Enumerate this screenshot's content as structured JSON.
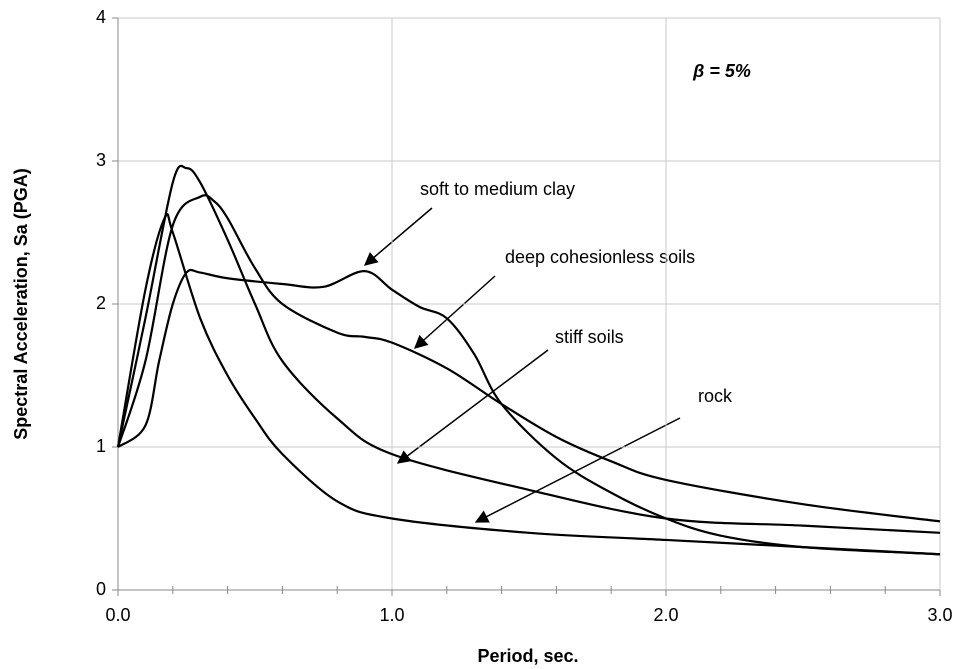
{
  "chart_data": {
    "type": "line",
    "xlabel": "Period, sec.",
    "ylabel": "Spectral Acceleration, Sa (PGA)",
    "annotation": "β = 5%",
    "xlim": [
      0,
      3
    ],
    "ylim": [
      0,
      4
    ],
    "xticks": [
      {
        "value": 0,
        "label": "0.0"
      },
      {
        "value": 1,
        "label": "1.0"
      },
      {
        "value": 2,
        "label": "2.0"
      },
      {
        "value": 3,
        "label": "3.0"
      }
    ],
    "xminorticks": [
      0.2,
      0.4,
      0.6,
      0.8,
      1.2,
      1.4,
      1.6,
      1.8,
      2.2,
      2.4,
      2.6,
      2.8
    ],
    "yticks": [
      0,
      1,
      2,
      3,
      4
    ],
    "grid": true,
    "series": [
      {
        "name": "soft to medium clay",
        "color": "#000000",
        "x": [
          0,
          0.1,
          0.15,
          0.2,
          0.25,
          0.3,
          0.4,
          0.6,
          0.75,
          0.9,
          1.0,
          1.1,
          1.2,
          1.3,
          1.4,
          1.6,
          1.8,
          2.0,
          2.2,
          2.5,
          3.0
        ],
        "values": [
          1.0,
          1.15,
          1.6,
          2.0,
          2.22,
          2.22,
          2.18,
          2.14,
          2.12,
          2.23,
          2.1,
          1.98,
          1.9,
          1.65,
          1.3,
          0.92,
          0.68,
          0.5,
          0.38,
          0.3,
          0.25
        ]
      },
      {
        "name": "deep cohesionless soils",
        "color": "#000000",
        "x": [
          0,
          0.1,
          0.2,
          0.3,
          0.35,
          0.4,
          0.5,
          0.6,
          0.8,
          0.9,
          1.0,
          1.2,
          1.4,
          1.6,
          1.8,
          2.0,
          2.5,
          3.0
        ],
        "values": [
          1.0,
          1.6,
          2.55,
          2.75,
          2.72,
          2.6,
          2.25,
          2.0,
          1.8,
          1.77,
          1.73,
          1.55,
          1.3,
          1.07,
          0.9,
          0.77,
          0.6,
          0.48
        ]
      },
      {
        "name": "stiff soils",
        "color": "#000000",
        "x": [
          0,
          0.1,
          0.2,
          0.25,
          0.3,
          0.4,
          0.5,
          0.6,
          0.8,
          1.0,
          1.5,
          2.0,
          2.5,
          3.0
        ],
        "values": [
          1.0,
          1.9,
          2.85,
          2.95,
          2.85,
          2.45,
          2.0,
          1.6,
          1.2,
          0.95,
          0.7,
          0.5,
          0.45,
          0.4
        ]
      },
      {
        "name": "rock",
        "color": "#000000",
        "x": [
          0,
          0.1,
          0.17,
          0.2,
          0.3,
          0.4,
          0.5,
          0.6,
          0.8,
          1.0,
          1.5,
          2.0,
          2.5,
          3.0
        ],
        "values": [
          1.0,
          2.1,
          2.6,
          2.5,
          1.9,
          1.5,
          1.2,
          0.95,
          0.62,
          0.5,
          0.4,
          0.35,
          0.3,
          0.25
        ]
      }
    ]
  }
}
